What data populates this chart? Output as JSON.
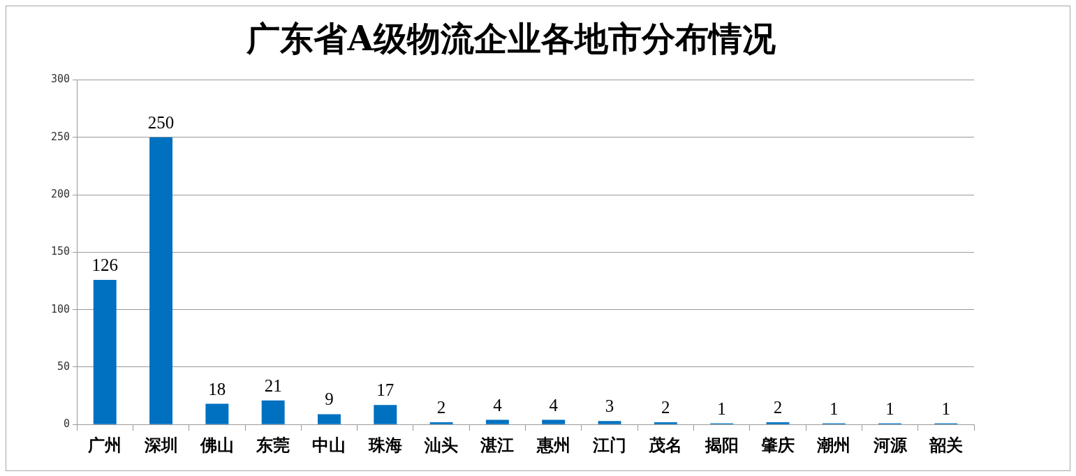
{
  "chart_data": {
    "type": "bar",
    "title": "广东省A级物流企业各地市分布情况",
    "categories": [
      "广州",
      "深圳",
      "佛山",
      "东莞",
      "中山",
      "珠海",
      "汕头",
      "湛江",
      "惠州",
      "江门",
      "茂名",
      "揭阳",
      "肇庆",
      "潮州",
      "河源",
      "韶关"
    ],
    "values": [
      126,
      250,
      18,
      21,
      9,
      17,
      2,
      4,
      4,
      3,
      2,
      1,
      2,
      1,
      1,
      1
    ],
    "color": "#0070c0",
    "ylim": [
      0,
      300
    ],
    "yticks": [
      0,
      50,
      100,
      150,
      200,
      250,
      300
    ],
    "grid": "y",
    "data_labels": true
  }
}
